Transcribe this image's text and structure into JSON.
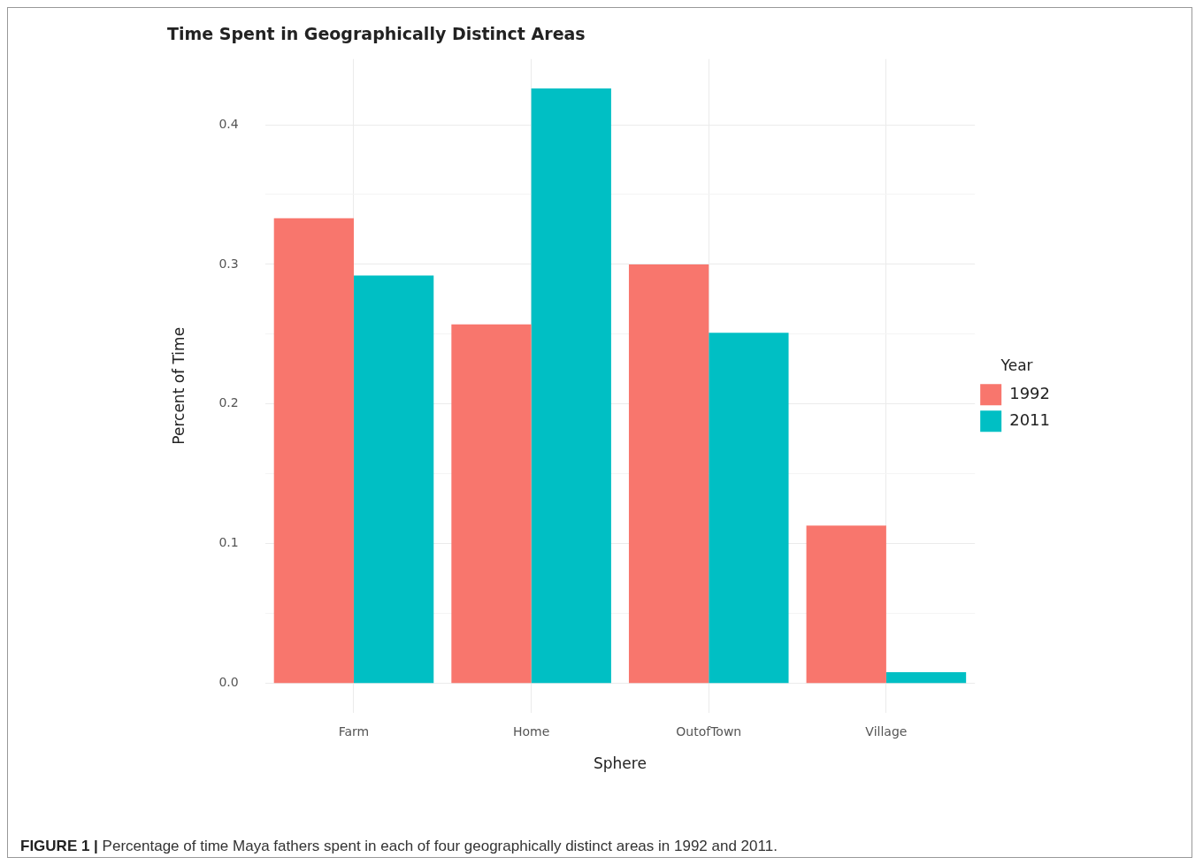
{
  "chart_data": {
    "type": "bar",
    "title": "Time Spent in Geographically Distinct Areas",
    "xlabel": "Sphere",
    "ylabel": "Percent of Time",
    "legend_title": "Year",
    "categories": [
      "Farm",
      "Home",
      "OutofTown",
      "Village"
    ],
    "series": [
      {
        "name": "1992",
        "color": "#f8766d",
        "values": [
          0.333,
          0.257,
          0.3,
          0.113
        ]
      },
      {
        "name": "2011",
        "color": "#00bfc4",
        "values": [
          0.292,
          0.426,
          0.251,
          0.008
        ]
      }
    ],
    "ylim": [
      -0.021,
      0.447
    ],
    "yticks": [
      {
        "value": 0,
        "label": "0.0"
      },
      {
        "value": 0.05,
        "label": null
      },
      0.1,
      {
        "value": 0.15,
        "label": null
      },
      0.2,
      {
        "value": 0.25,
        "label": null
      },
      0.3,
      {
        "value": 0.35,
        "label": null
      },
      0.4
    ],
    "grid": true,
    "legend": "right",
    "annotations": [
      "FIGURE 1 | Percentage of time Maya fathers spent in each of four geographically distinct areas in 1992 and 2011."
    ]
  }
}
